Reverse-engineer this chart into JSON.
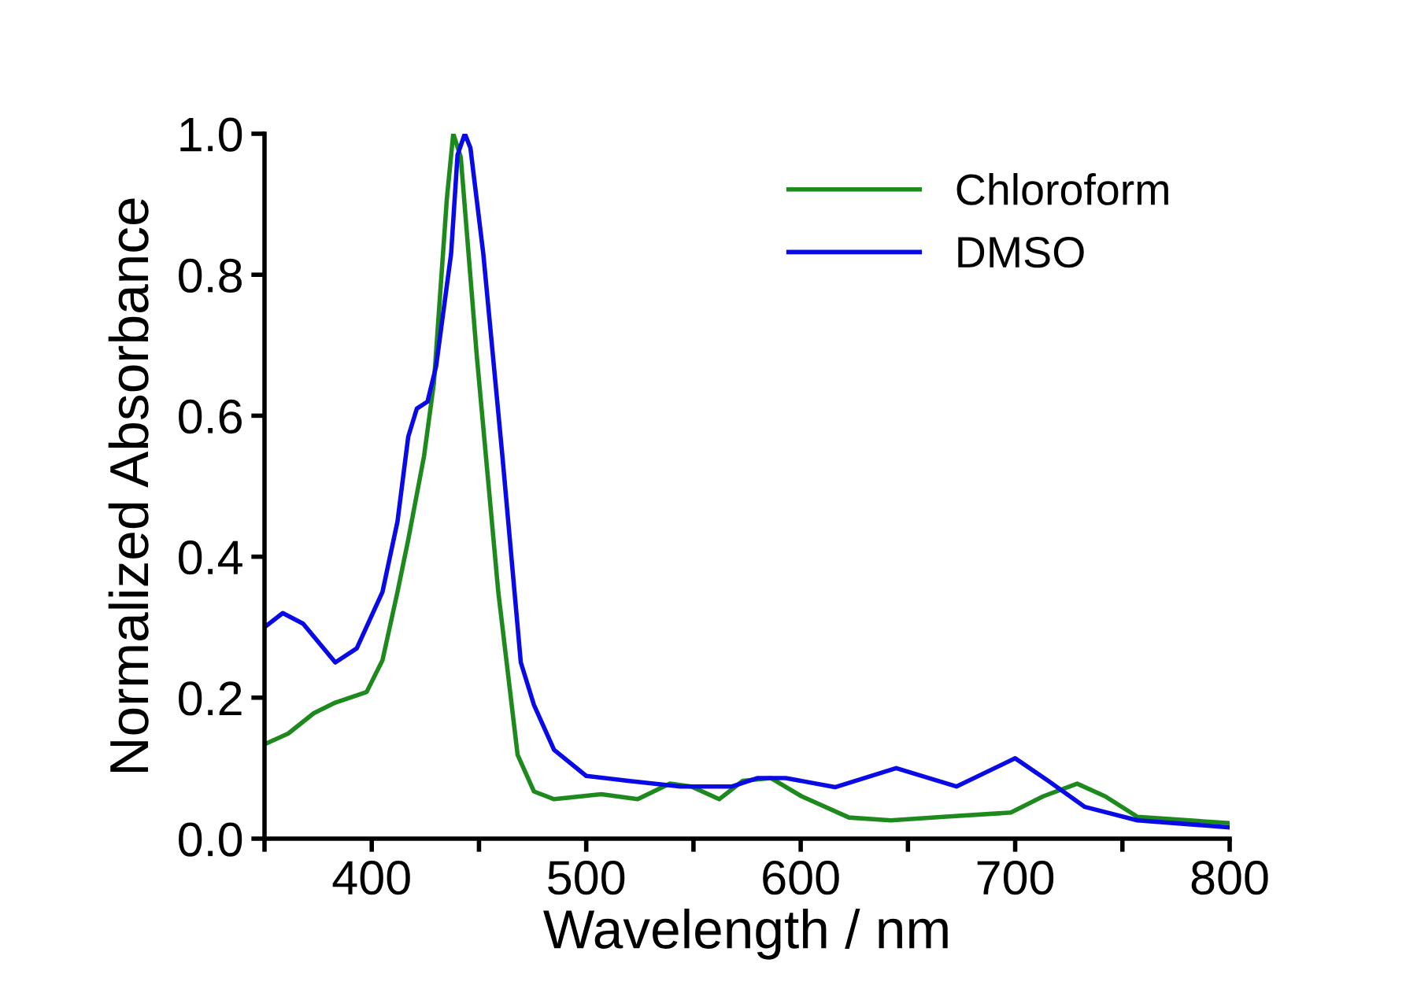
{
  "chart_data": {
    "type": "line",
    "xlabel": "Wavelength / nm",
    "ylabel": "Normalized Absorbance",
    "xlim": [
      350,
      800
    ],
    "ylim": [
      0,
      1.0
    ],
    "xticks": [
      {
        "value": 350,
        "label": null
      },
      400,
      {
        "value": 450,
        "label": null
      },
      500,
      {
        "value": 550,
        "label": null
      },
      600,
      {
        "value": 650,
        "label": null
      },
      700,
      {
        "value": 750,
        "label": null
      },
      800
    ],
    "yticks": [
      {
        "value": 0,
        "label": "0.0"
      },
      {
        "value": 0.2,
        "label": "0.2"
      },
      {
        "value": 0.4,
        "label": "0.4"
      },
      {
        "value": 0.6,
        "label": "0.6"
      },
      {
        "value": 0.8,
        "label": "0.8"
      },
      {
        "value": 1.0,
        "label": "1.0"
      }
    ],
    "grid": false,
    "legend": "top right",
    "marker": "none",
    "line_style": "solid",
    "series": [
      {
        "name": "Chloroform",
        "color": "#1e8a1e",
        "x": [
          350,
          361,
          373,
          383,
          397.6,
          405,
          412,
          417,
          424.4,
          429,
          435,
          438,
          441.5,
          449,
          459,
          468,
          475.6,
          485,
          507,
          524,
          539,
          549,
          562,
          573,
          586,
          600.5,
          622.5,
          642,
          666.5,
          698,
          713,
          728.9,
          742,
          757,
          800
        ],
        "values": [
          0.134,
          0.149,
          0.178,
          0.193,
          0.208,
          0.253,
          0.35,
          0.424,
          0.543,
          0.647,
          0.907,
          1.0,
          0.967,
          0.684,
          0.35,
          0.119,
          0.067,
          0.056,
          0.063,
          0.056,
          0.078,
          0.074,
          0.056,
          0.082,
          0.086,
          0.06,
          0.03,
          0.026,
          0.031,
          0.037,
          0.06,
          0.078,
          0.06,
          0.031,
          0.022
        ]
      },
      {
        "name": "DMSO",
        "color": "#0a0ae6",
        "x": [
          350,
          358.5,
          368,
          383,
          393,
          405,
          412,
          417,
          421,
          426,
          430,
          437,
          440,
          443.4,
          446,
          452,
          461,
          469.5,
          475.6,
          485,
          500,
          519.5,
          544,
          568,
          580,
          593,
          616,
          644.5,
          672.6,
          700,
          715.4,
          732.5,
          757,
          800
        ],
        "values": [
          0.3,
          0.32,
          0.305,
          0.25,
          0.27,
          0.35,
          0.45,
          0.57,
          0.61,
          0.62,
          0.67,
          0.83,
          0.97,
          1.0,
          0.98,
          0.83,
          0.54,
          0.25,
          0.19,
          0.126,
          0.089,
          0.082,
          0.074,
          0.074,
          0.086,
          0.086,
          0.073,
          0.1,
          0.074,
          0.114,
          0.082,
          0.045,
          0.026,
          0.016
        ]
      }
    ]
  }
}
